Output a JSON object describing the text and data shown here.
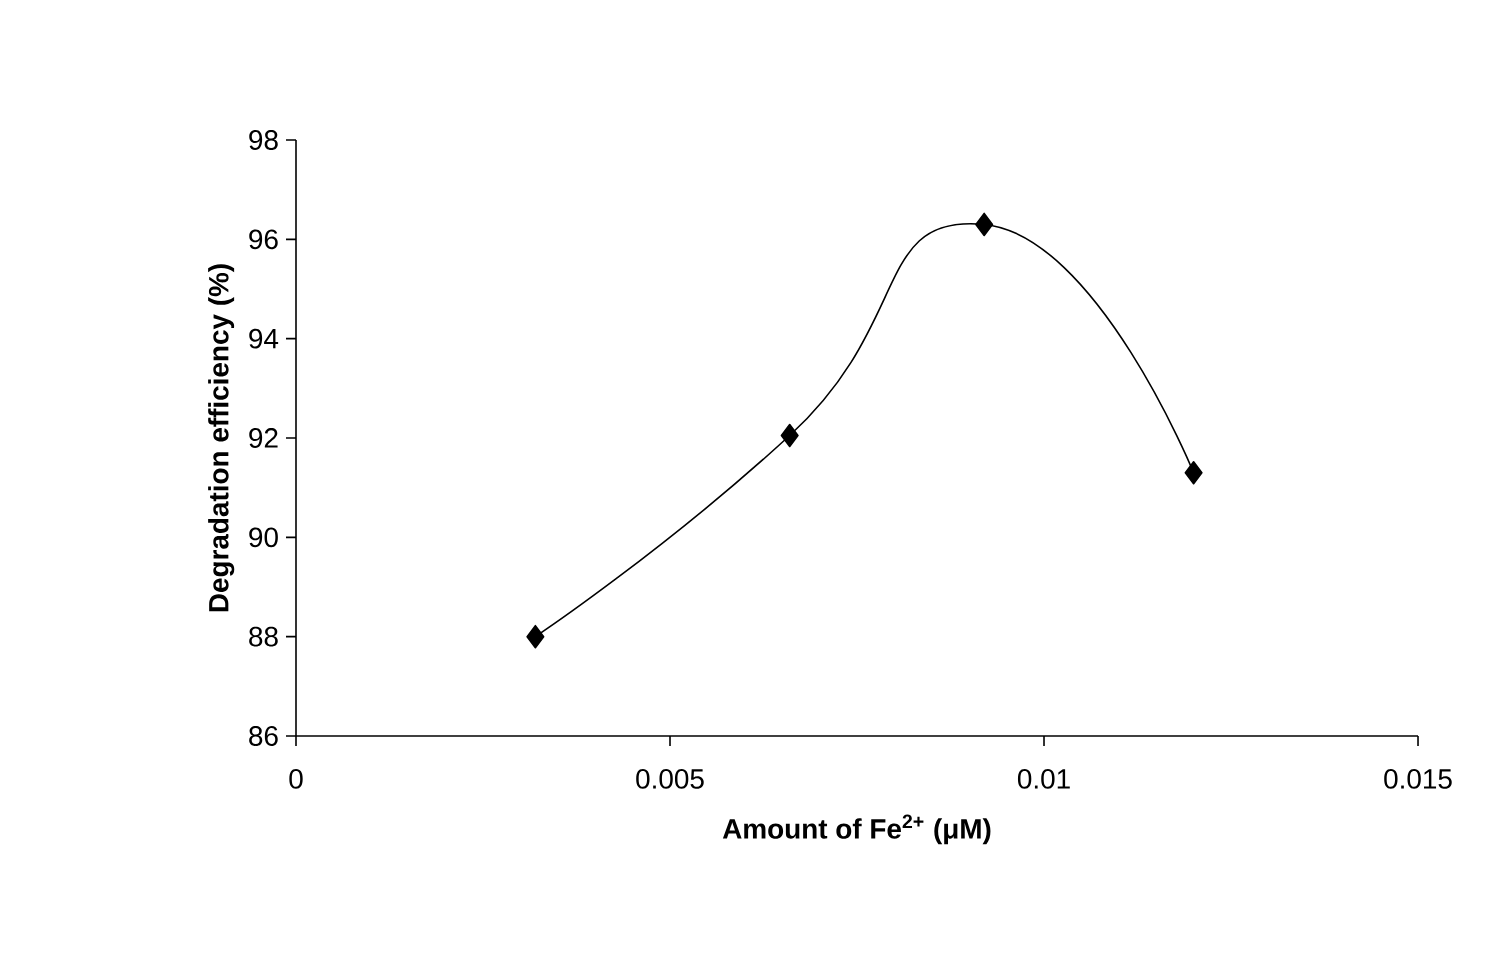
{
  "chart_data": {
    "type": "line",
    "xlabel": "Amount of Fe$^{2+}$  (μM)",
    "ylabel": "Degradation efficiency (%)",
    "x": [
      0.0032,
      0.0066,
      0.0092,
      0.012
    ],
    "series": [
      {
        "color": "#000000",
        "values": [
          88.0,
          92.05,
          96.3,
          91.3
        ]
      }
    ],
    "xlim": [
      0,
      0.015
    ],
    "xticks": [
      0,
      0.005,
      0.01,
      0.015
    ],
    "ylim": [
      86,
      98
    ],
    "yticks": [
      86,
      88,
      90,
      92,
      94,
      96,
      98
    ],
    "marker": "diamond",
    "line_style": "solid"
  }
}
